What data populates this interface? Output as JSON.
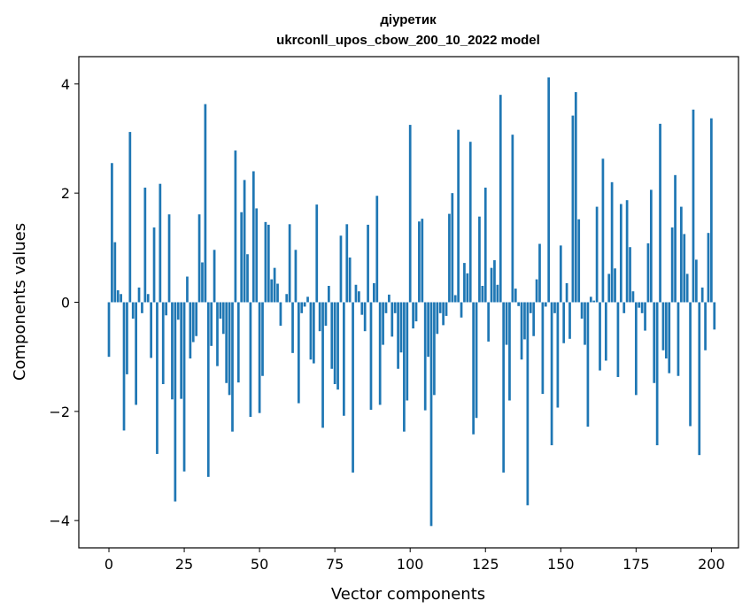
{
  "chart_data": {
    "type": "bar",
    "title": "діуретик",
    "subtitle": "ukrconll_upos_cbow_200_10_2022 model",
    "xlabel": "Vector components",
    "ylabel": "Components values",
    "xlim": [
      -10,
      209
    ],
    "ylim": [
      -4.5,
      4.5
    ],
    "xticks": [
      0,
      25,
      50,
      75,
      100,
      125,
      150,
      175,
      200
    ],
    "yticks": [
      -4,
      -2,
      0,
      2,
      4
    ],
    "ytick_labels": [
      "−4",
      "−2",
      "0",
      "2",
      "4"
    ],
    "bar_color": "#1f77b4",
    "values": [
      -1.0,
      2.55,
      1.1,
      0.22,
      0.15,
      -2.35,
      -1.32,
      3.12,
      -0.3,
      -1.88,
      0.27,
      -0.2,
      2.1,
      0.15,
      -1.02,
      1.37,
      -2.78,
      2.17,
      -1.5,
      -0.24,
      1.61,
      -1.78,
      -3.65,
      -0.32,
      -1.77,
      -3.1,
      0.47,
      -1.03,
      -0.73,
      -0.62,
      1.61,
      0.73,
      3.63,
      -3.2,
      -0.8,
      0.96,
      -1.17,
      -0.3,
      -0.58,
      -1.48,
      -1.7,
      -2.37,
      2.78,
      -1.47,
      1.65,
      2.24,
      0.88,
      -2.1,
      2.4,
      1.72,
      -2.03,
      -1.35,
      1.47,
      1.42,
      0.42,
      0.63,
      0.34,
      -0.43,
      0.0,
      0.15,
      1.43,
      -0.93,
      0.96,
      -1.85,
      -0.2,
      -0.08,
      0.1,
      -1.05,
      -1.12,
      1.79,
      -0.53,
      -2.3,
      -0.43,
      0.3,
      -1.22,
      -1.5,
      -1.6,
      1.22,
      -2.08,
      1.43,
      0.82,
      -3.12,
      0.32,
      0.2,
      -0.23,
      -0.53,
      1.42,
      -1.97,
      0.35,
      1.95,
      -1.88,
      -0.78,
      -0.2,
      0.14,
      -0.63,
      -0.2,
      -1.22,
      -0.92,
      -2.37,
      -1.8,
      3.25,
      -0.48,
      -0.35,
      1.48,
      1.53,
      -1.98,
      -1.0,
      -4.1,
      -1.7,
      -0.58,
      -0.2,
      -0.42,
      -0.25,
      1.62,
      2.0,
      0.13,
      3.16,
      -0.28,
      0.72,
      0.53,
      2.94,
      -2.42,
      -2.12,
      1.57,
      0.3,
      2.1,
      -0.72,
      0.63,
      0.77,
      0.32,
      3.8,
      -3.12,
      -0.78,
      -1.8,
      3.07,
      0.25,
      -0.07,
      -1.05,
      -0.68,
      -3.72,
      -0.2,
      -0.62,
      0.42,
      1.07,
      -1.68,
      -0.08,
      4.12,
      -2.62,
      -0.2,
      -1.93,
      1.04,
      -0.75,
      0.35,
      -0.67,
      3.42,
      3.85,
      1.52,
      -0.3,
      -0.78,
      -2.28,
      0.1,
      0.03,
      1.75,
      -1.25,
      2.63,
      -1.07,
      0.52,
      2.2,
      0.62,
      -1.37,
      1.8,
      -0.2,
      1.87,
      1.01,
      0.2,
      -1.7,
      -0.1,
      -0.2,
      -0.52,
      1.08,
      2.06,
      -1.48,
      -2.62,
      3.27,
      -0.88,
      -1.03,
      -1.3,
      1.37,
      2.33,
      -1.35,
      1.75,
      1.25,
      0.52,
      -2.27,
      3.53,
      0.78,
      -2.8,
      0.27,
      -0.88,
      1.27,
      3.37,
      -0.5
    ]
  }
}
